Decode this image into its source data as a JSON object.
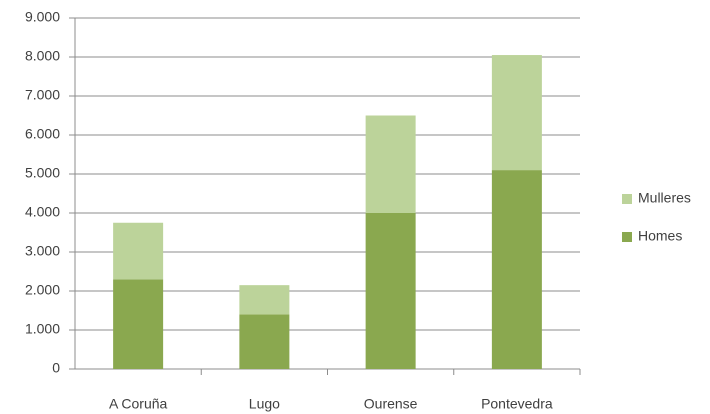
{
  "chart_data": {
    "type": "stacked_bar",
    "categories": [
      "A Coruña",
      "Lugo",
      "Ourense",
      "Pontevedra"
    ],
    "series": [
      {
        "name": "Homes",
        "color": "#8aa84f",
        "values": [
          2300,
          1400,
          4000,
          5100
        ]
      },
      {
        "name": "Mulleres",
        "color": "#bcd39a",
        "values": [
          1450,
          750,
          2500,
          2950
        ]
      }
    ],
    "ylim": [
      0,
      9000
    ],
    "yticks": [
      0,
      {
        "value": 1000,
        "label": "1.000"
      },
      {
        "value": 2000,
        "label": "2.000"
      },
      {
        "value": 3000,
        "label": "3.000"
      },
      {
        "value": 4000,
        "label": "4.000"
      },
      {
        "value": 5000,
        "label": "5.000"
      },
      {
        "value": 6000,
        "label": "6.000"
      },
      {
        "value": 7000,
        "label": "7.000"
      },
      {
        "value": 8000,
        "label": "8.000"
      },
      {
        "value": 9000,
        "label": "9.000"
      }
    ],
    "grid": true,
    "legend": "right"
  }
}
